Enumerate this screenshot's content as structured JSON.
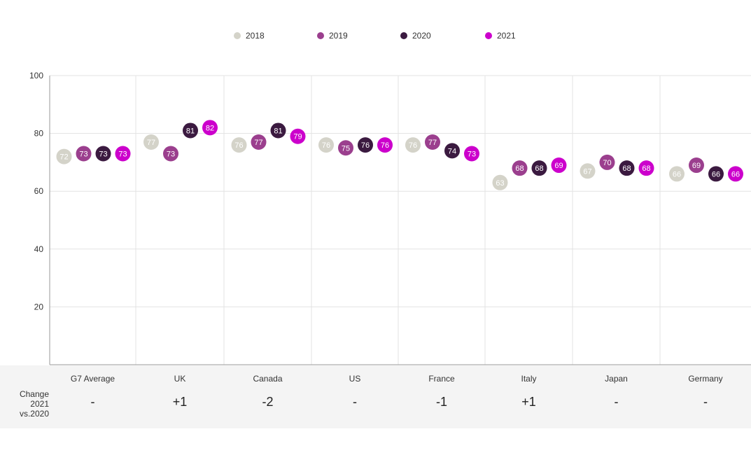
{
  "chart_data": {
    "type": "scatter",
    "categories": [
      "G7 Average",
      "UK",
      "Canada",
      "US",
      "France",
      "Italy",
      "Japan",
      "Germany"
    ],
    "series": [
      {
        "name": "2018",
        "color": "#d4d3c9",
        "values": [
          72,
          77,
          76,
          76,
          76,
          63,
          67,
          66
        ]
      },
      {
        "name": "2019",
        "color": "#9b3f8e",
        "values": [
          73,
          73,
          77,
          75,
          77,
          68,
          70,
          69
        ]
      },
      {
        "name": "2020",
        "color": "#3b1a40",
        "values": [
          73,
          81,
          81,
          76,
          74,
          68,
          68,
          66
        ]
      },
      {
        "name": "2021",
        "color": "#cc00cc",
        "values": [
          73,
          82,
          79,
          76,
          73,
          69,
          68,
          66
        ]
      }
    ],
    "ylim": [
      0,
      100
    ],
    "yticks": [
      20,
      40,
      60,
      80,
      100
    ],
    "grid": true,
    "legend_position": "top-center",
    "xlabel": "",
    "ylabel": ""
  },
  "change": {
    "title_line1": "Change",
    "title_line2": "2021 vs.2020",
    "values": [
      "-",
      "+1",
      "-2",
      "-",
      "-1",
      "+1",
      "-",
      "-"
    ]
  }
}
